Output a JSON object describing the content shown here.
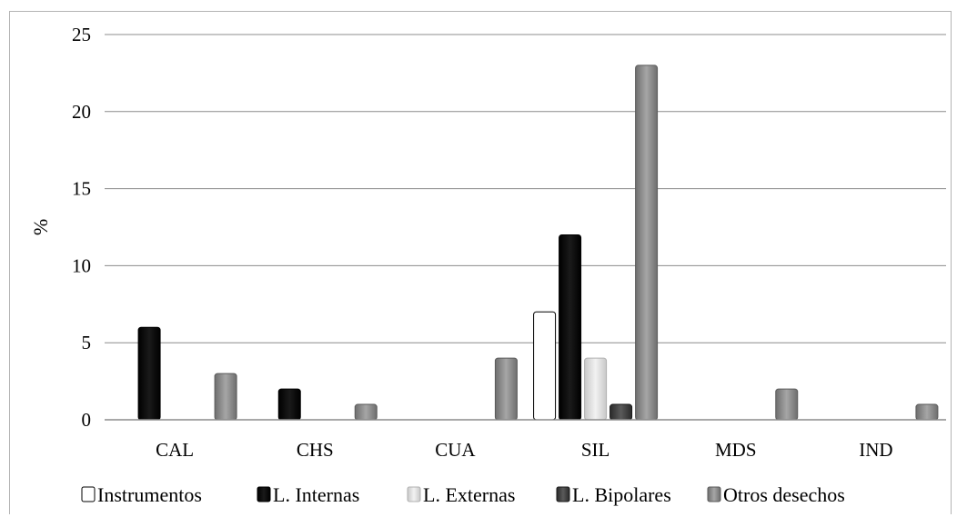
{
  "chart_data": {
    "type": "bar",
    "ylabel": "%",
    "xlabel": "",
    "ylim": [
      0,
      25
    ],
    "yticks": [
      0,
      5,
      10,
      15,
      20,
      25
    ],
    "grid": true,
    "legend_position": "bottom",
    "categories": [
      "CAL",
      "CHS",
      "CUA",
      "SIL",
      "MDS",
      "IND"
    ],
    "series": [
      {
        "name": "Instrumentos",
        "color": "#ffffff",
        "values": [
          0,
          0,
          0,
          7,
          0,
          0
        ]
      },
      {
        "name": "L. Internas",
        "color": "#0a0a0a",
        "values": [
          6,
          2,
          0,
          12,
          0,
          0
        ]
      },
      {
        "name": "L. Externas",
        "color": "#d9d9d9",
        "values": [
          0,
          0,
          0,
          4,
          0,
          0
        ]
      },
      {
        "name": "L. Bipolares",
        "color": "#404040",
        "values": [
          0,
          0,
          0,
          1,
          0,
          0
        ]
      },
      {
        "name": "Otros desechos",
        "color": "#8c8c8c",
        "values": [
          3,
          1,
          4,
          23,
          2,
          1
        ]
      }
    ]
  }
}
